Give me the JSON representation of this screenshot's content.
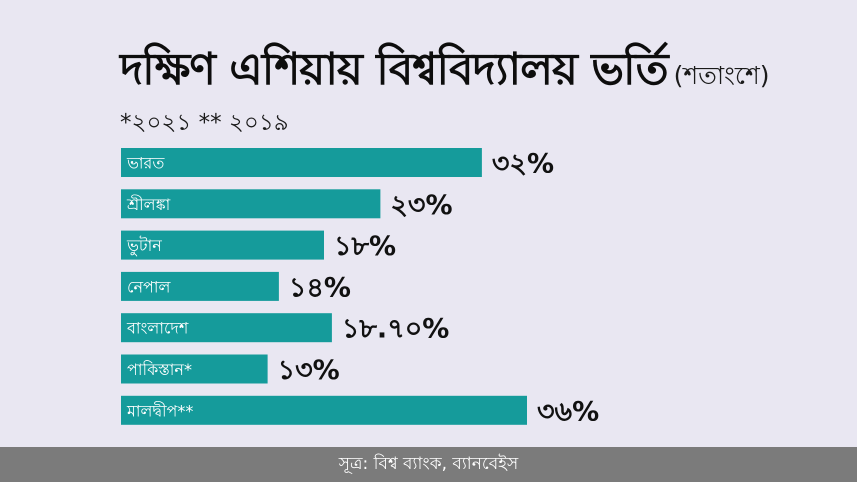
{
  "header": {
    "title": "দক্ষিণ এশিয়ায় বিশ্ববিদ্যালয় ভর্তি",
    "unit": "(শতাংশে)",
    "note": "*২০২১ ** ২০১৯"
  },
  "footer": {
    "source": "সূত্র: বিশ্ব ব্যাংক, ব্যানবেইস"
  },
  "colors": {
    "bar": "#159b9b",
    "background": "#e9e7f2",
    "footer": "#7b7b7b"
  },
  "chart_data": {
    "type": "bar",
    "orientation": "horizontal",
    "categories": [
      "ভারত",
      "শ্রীলঙ্কা",
      "ভুটান",
      "নেপাল",
      "বাংলাদেশ",
      "পাকিস্তান*",
      "মালদ্বীপ**"
    ],
    "values": [
      32,
      23,
      18,
      14,
      18.7,
      13,
      36
    ],
    "value_labels": [
      "৩২%",
      "২৩%",
      "১৮%",
      "১৪%",
      "১৮.৭০%",
      "১৩%",
      "৩৬%"
    ],
    "xlim": [
      0,
      36
    ],
    "grid": false,
    "legend": "none"
  }
}
